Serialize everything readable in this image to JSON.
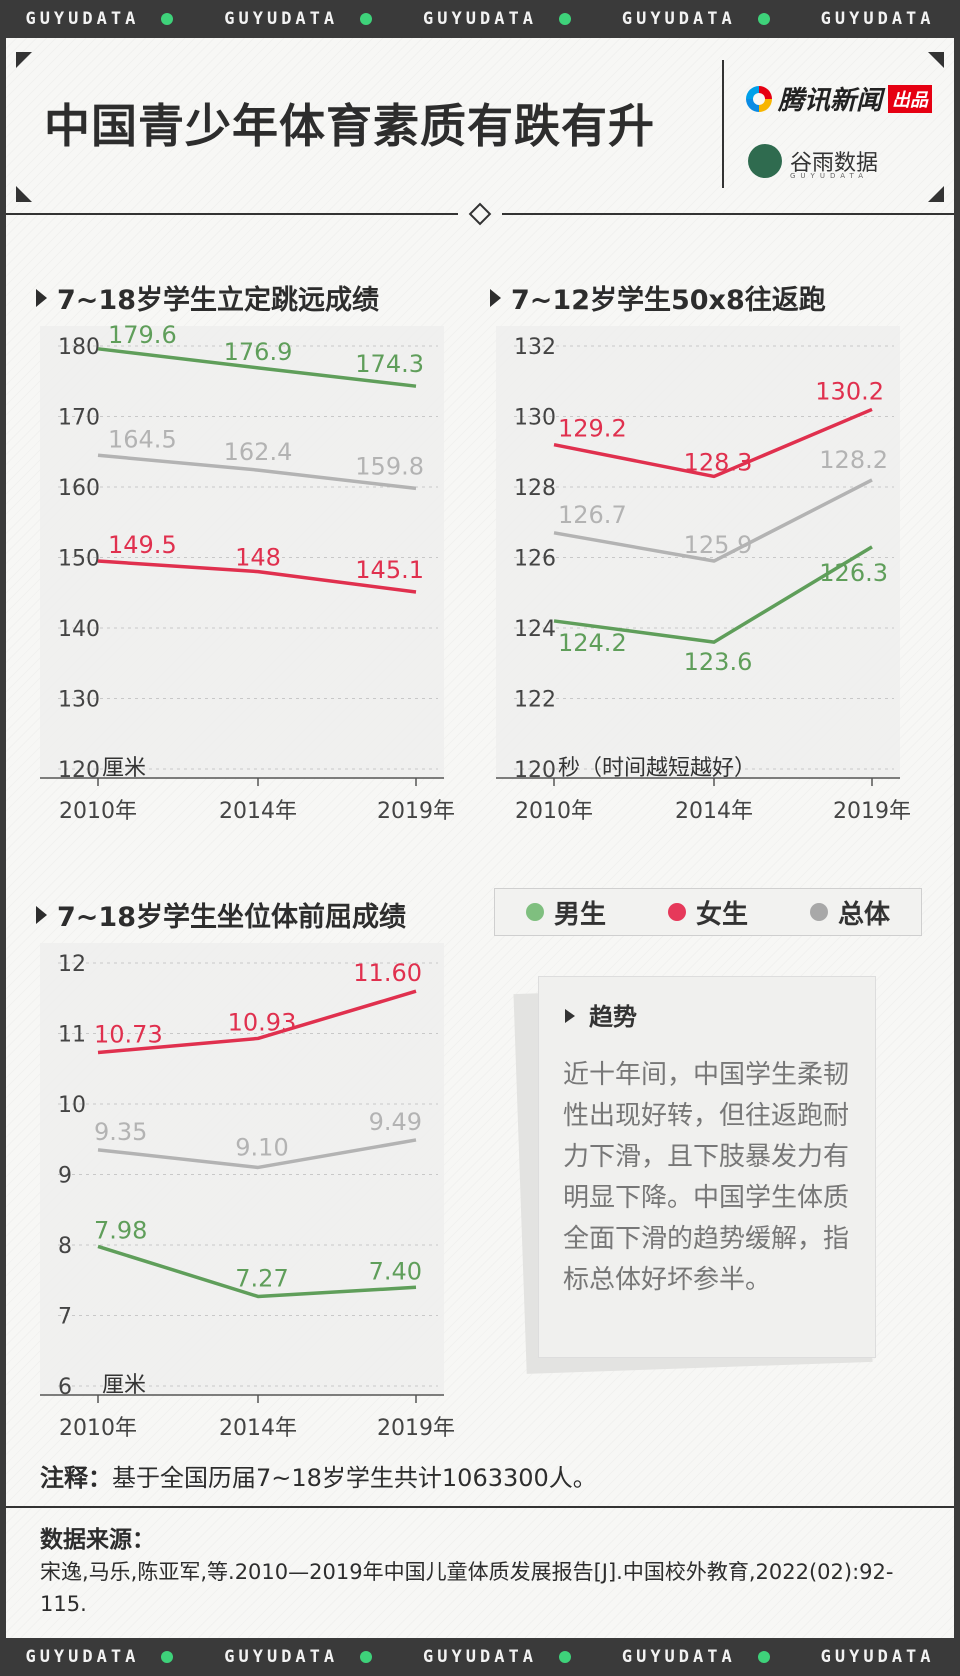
{
  "banner": {
    "text": "GUYUDATA"
  },
  "title": "中国青少年体育素质有跌有升",
  "logos": {
    "tencent_name": "腾讯新闻",
    "tencent_tag": "出品",
    "guyu_name": "谷雨数据",
    "guyu_sub": "GUYUDATA"
  },
  "legend": {
    "male": "男生",
    "female": "女生",
    "total": "总体"
  },
  "colors": {
    "male": "#5f9e5a",
    "female": "#e0304e",
    "total": "#b3b3b3",
    "male_dot": "#7fbf7f",
    "female_dot": "#e6395a",
    "total_dot": "#a8a8a8"
  },
  "trend": {
    "title": "趋势",
    "text": "近十年间，中国学生柔韧性出现好转，但往返跑耐力下滑，且下肢暴发力有明显下降。中国学生体质全面下滑的趋势缓解，指标总体好坏参半。"
  },
  "note": {
    "label": "注释：",
    "text": "基于全国历届7~18岁学生共计1063300人。"
  },
  "source": {
    "title": "数据来源：",
    "text": "宋逸,马乐,陈亚军,等.2010—2019年中国儿童体质发展报告[J].中国校外教育,2022(02):92-115."
  },
  "chart_data": [
    {
      "type": "line",
      "title": "7~18岁学生立定跳远成绩",
      "unit_label": "厘米",
      "categories": [
        "2010年",
        "2014年",
        "2019年"
      ],
      "ylim": [
        120,
        180
      ],
      "yticks": [
        "120",
        "130",
        "140",
        "150",
        "160",
        "170",
        "180"
      ],
      "series": [
        {
          "name": "男生",
          "key": "male",
          "values": [
            179.6,
            176.9,
            174.3
          ],
          "labels": [
            "179.6",
            "176.9",
            "174.3"
          ]
        },
        {
          "name": "总体",
          "key": "total",
          "values": [
            164.5,
            162.4,
            159.8
          ],
          "labels": [
            "164.5",
            "162.4",
            "159.8"
          ]
        },
        {
          "name": "女生",
          "key": "female",
          "values": [
            149.5,
            148,
            145.1
          ],
          "labels": [
            "149.5",
            "148",
            "145.1"
          ]
        }
      ]
    },
    {
      "type": "line",
      "title": "7~12岁学生50x8往返跑",
      "unit_label": "秒（时间越短越好）",
      "categories": [
        "2010年",
        "2014年",
        "2019年"
      ],
      "ylim": [
        120,
        132
      ],
      "yticks": [
        "120",
        "122",
        "124",
        "126",
        "128",
        "130",
        "132"
      ],
      "series": [
        {
          "name": "女生",
          "key": "female",
          "values": [
            129.2,
            128.3,
            130.2
          ],
          "labels": [
            "129.2",
            "128.3",
            "130.2"
          ]
        },
        {
          "name": "总体",
          "key": "total",
          "values": [
            126.7,
            125.9,
            128.2
          ],
          "labels": [
            "126.7",
            "125.9",
            "128.2"
          ]
        },
        {
          "name": "男生",
          "key": "male",
          "values": [
            124.2,
            123.6,
            126.3
          ],
          "labels": [
            "124.2",
            "123.6",
            "126.3"
          ]
        }
      ]
    },
    {
      "type": "line",
      "title": "7~18岁学生坐位体前屈成绩",
      "unit_label": "厘米",
      "categories": [
        "2010年",
        "2014年",
        "2019年"
      ],
      "ylim": [
        6,
        12
      ],
      "yticks": [
        "6",
        "7",
        "8",
        "9",
        "10",
        "11",
        "12"
      ],
      "series": [
        {
          "name": "女生",
          "key": "female",
          "values": [
            10.73,
            10.93,
            11.6
          ],
          "labels": [
            "10.73",
            "10.93",
            "11.60"
          ]
        },
        {
          "name": "总体",
          "key": "total",
          "values": [
            9.35,
            9.1,
            9.49
          ],
          "labels": [
            "9.35",
            "9.10",
            "9.49"
          ]
        },
        {
          "name": "男生",
          "key": "male",
          "values": [
            7.98,
            7.27,
            7.4
          ],
          "labels": [
            "7.98",
            "7.27",
            "7.40"
          ]
        }
      ]
    }
  ]
}
